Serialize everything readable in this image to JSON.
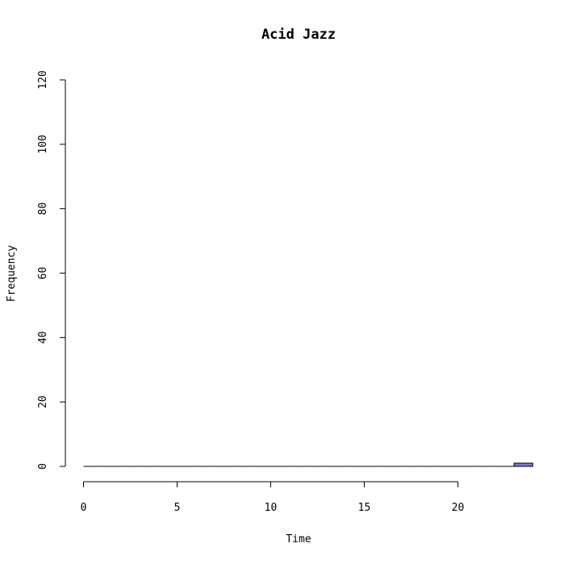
{
  "chart_data": {
    "type": "bar",
    "title": "Acid Jazz",
    "xlabel": "Time",
    "ylabel": "Frequency",
    "xlim": [
      0,
      24
    ],
    "ylim": [
      0,
      120
    ],
    "xticks": [
      0,
      5,
      10,
      15,
      20
    ],
    "yticks": [
      0,
      20,
      40,
      60,
      80,
      100,
      120
    ],
    "bin_width": 1,
    "bins": [
      {
        "x0": 0,
        "x1": 1,
        "count": 0
      },
      {
        "x0": 1,
        "x1": 2,
        "count": 0
      },
      {
        "x0": 2,
        "x1": 3,
        "count": 0
      },
      {
        "x0": 3,
        "x1": 4,
        "count": 0
      },
      {
        "x0": 4,
        "x1": 5,
        "count": 0
      },
      {
        "x0": 5,
        "x1": 6,
        "count": 0
      },
      {
        "x0": 6,
        "x1": 7,
        "count": 0
      },
      {
        "x0": 7,
        "x1": 8,
        "count": 0
      },
      {
        "x0": 8,
        "x1": 9,
        "count": 0
      },
      {
        "x0": 9,
        "x1": 10,
        "count": 0
      },
      {
        "x0": 10,
        "x1": 11,
        "count": 0
      },
      {
        "x0": 11,
        "x1": 12,
        "count": 0
      },
      {
        "x0": 12,
        "x1": 13,
        "count": 0
      },
      {
        "x0": 13,
        "x1": 14,
        "count": 0
      },
      {
        "x0": 14,
        "x1": 15,
        "count": 0
      },
      {
        "x0": 15,
        "x1": 16,
        "count": 0
      },
      {
        "x0": 16,
        "x1": 17,
        "count": 0
      },
      {
        "x0": 17,
        "x1": 18,
        "count": 0
      },
      {
        "x0": 18,
        "x1": 19,
        "count": 0
      },
      {
        "x0": 19,
        "x1": 20,
        "count": 0
      },
      {
        "x0": 20,
        "x1": 21,
        "count": 0
      },
      {
        "x0": 21,
        "x1": 22,
        "count": 0
      },
      {
        "x0": 22,
        "x1": 23,
        "count": 0
      },
      {
        "x0": 23,
        "x1": 24,
        "count": 1
      }
    ],
    "bar_color": "#7b7bd6",
    "grid": false
  }
}
